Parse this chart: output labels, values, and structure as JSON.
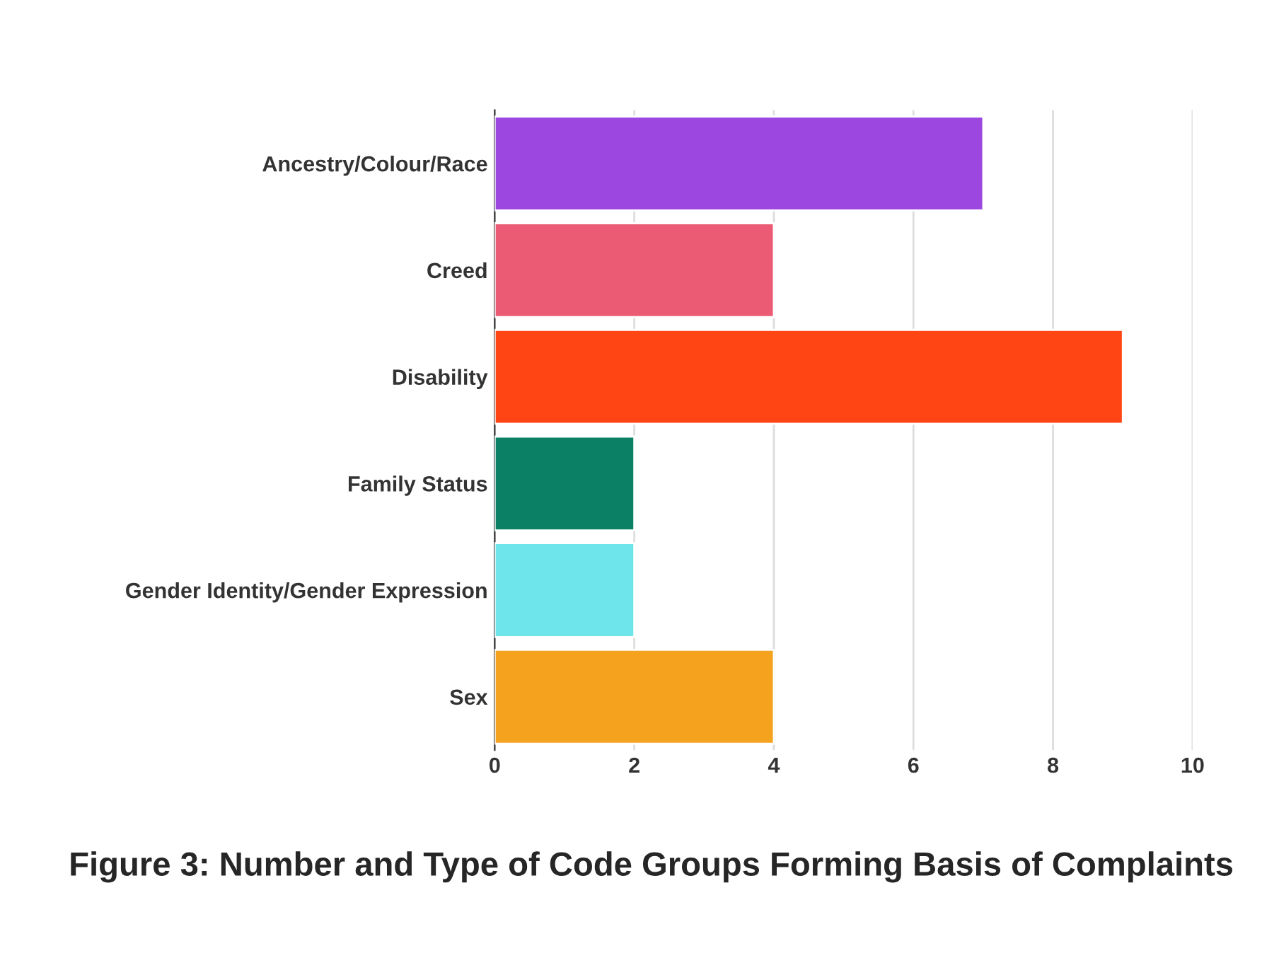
{
  "chart_data": {
    "type": "bar",
    "orientation": "horizontal",
    "title": "Figure 3: Number and Type of Code Groups Forming Basis of Complaints",
    "categories": [
      "Ancestry/Colour/Race",
      "Creed",
      "Disability",
      "Family Status",
      "Gender Identity/Gender Expression",
      "Sex"
    ],
    "values": [
      7,
      4,
      9,
      2,
      2,
      4
    ],
    "colors": [
      "#9b47e0",
      "#eb5c74",
      "#ff4514",
      "#0b8065",
      "#6de5ea",
      "#f5a31e"
    ],
    "xlim": [
      0,
      10
    ],
    "xticks": [
      0,
      2,
      4,
      6,
      8,
      10
    ],
    "grid": "x",
    "legend": false
  }
}
